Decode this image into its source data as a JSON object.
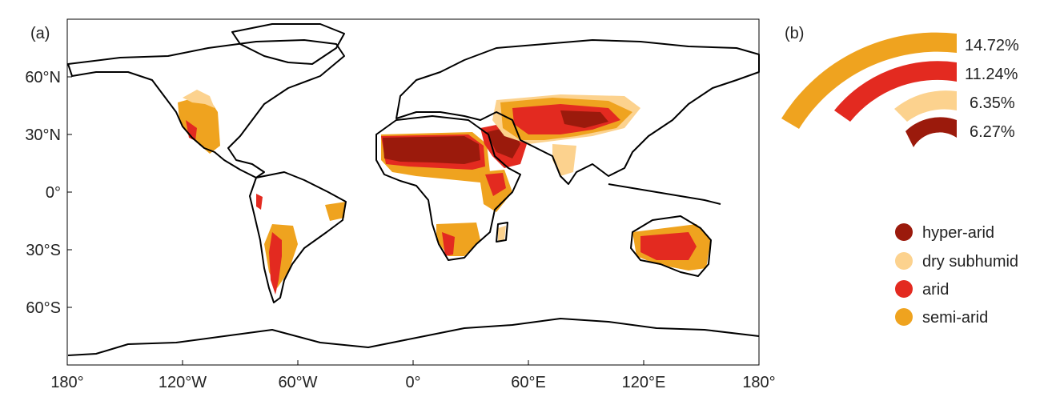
{
  "panel_a": {
    "label": "(a)",
    "lat_ticks": [
      "60°N",
      "30°N",
      "0°",
      "30°S",
      "60°S"
    ],
    "lon_ticks": [
      "180°",
      "120°W",
      "60°W",
      "0°",
      "60°E",
      "120°E",
      "180°"
    ]
  },
  "panel_b": {
    "label": "(b)",
    "arcs": [
      {
        "class": "semi-arid",
        "percent": 14.72,
        "label": "14.72%"
      },
      {
        "class": "arid",
        "percent": 11.24,
        "label": "11.24%"
      },
      {
        "class": "dry subhumid",
        "percent": 6.35,
        "label": "6.35%"
      },
      {
        "class": "hyper-arid",
        "percent": 6.27,
        "label": "6.27%"
      }
    ]
  },
  "legend": [
    {
      "label": "hyper-arid",
      "color": "#9b1a0c"
    },
    {
      "label": "dry subhumid",
      "color": "#fcd28e"
    },
    {
      "label": "arid",
      "color": "#e32a20"
    },
    {
      "label": "semi-arid",
      "color": "#efa31f"
    }
  ],
  "colors": {
    "hyper_arid": "#9b1a0c",
    "arid": "#e32a20",
    "semi_arid": "#efa31f",
    "dry_subhumid": "#fcd28e",
    "coastline": "#000000"
  }
}
